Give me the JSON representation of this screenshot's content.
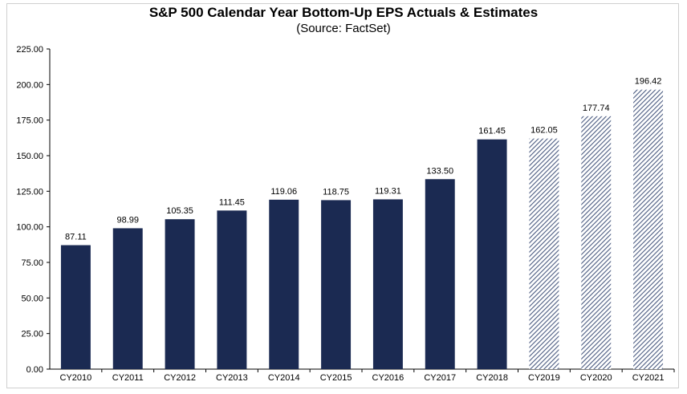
{
  "chart_data": {
    "type": "bar",
    "title": "S&P 500 Calendar Year Bottom-Up EPS Actuals & Estimates",
    "subtitle": "(Source: FactSet)",
    "xlabel": "",
    "ylabel": "",
    "ylim": [
      0,
      225
    ],
    "yticks": [
      "0.00",
      "25.00",
      "50.00",
      "75.00",
      "100.00",
      "125.00",
      "150.00",
      "175.00",
      "200.00",
      "225.00"
    ],
    "ytick_values": [
      0,
      25,
      50,
      75,
      100,
      125,
      150,
      175,
      200,
      225
    ],
    "grid": false,
    "categories": [
      "CY2010",
      "CY2011",
      "CY2012",
      "CY2013",
      "CY2014",
      "CY2015",
      "CY2016",
      "CY2017",
      "CY2018",
      "CY2019",
      "CY2020",
      "CY2021"
    ],
    "values": [
      87.11,
      98.99,
      105.35,
      111.45,
      119.06,
      118.75,
      119.31,
      133.5,
      161.45,
      162.05,
      177.74,
      196.42
    ],
    "value_labels": [
      "87.11",
      "98.99",
      "105.35",
      "111.45",
      "119.06",
      "118.75",
      "119.31",
      "133.50",
      "161.45",
      "162.05",
      "177.74",
      "196.42"
    ],
    "kind": [
      "actual",
      "actual",
      "actual",
      "actual",
      "actual",
      "actual",
      "actual",
      "actual",
      "actual",
      "estimate",
      "estimate",
      "estimate"
    ],
    "colors": {
      "actual": "#1b2a52",
      "estimate_stripe": "#4a5a80",
      "estimate_bg": "#ffffff",
      "axis": "#000000"
    }
  }
}
